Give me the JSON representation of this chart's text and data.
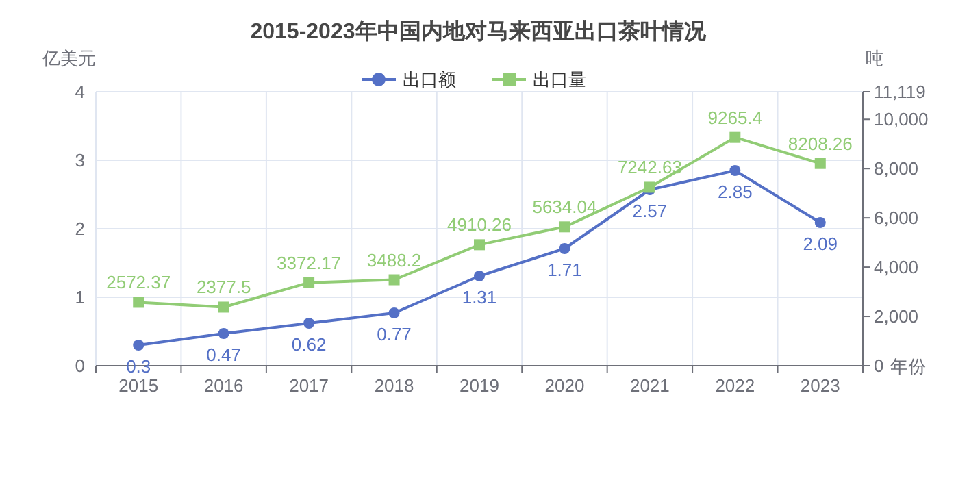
{
  "chart_data": {
    "type": "line",
    "title": "2015-2023年中国内地对马来西亚出口茶叶情况",
    "xlabel": "年份",
    "ylabel": "亿美元",
    "y2label": "吨",
    "categories": [
      "2015",
      "2016",
      "2017",
      "2018",
      "2019",
      "2020",
      "2021",
      "2022",
      "2023"
    ],
    "ylim": [
      0,
      4
    ],
    "yticks": [
      0,
      1,
      2,
      3,
      4
    ],
    "y2lim": [
      0,
      11119
    ],
    "y2ticks": [
      0,
      {
        "value": 2000,
        "label": "2,000"
      },
      {
        "value": 4000,
        "label": "4,000"
      },
      {
        "value": 6000,
        "label": "6,000"
      },
      {
        "value": 8000,
        "label": "8,000"
      },
      {
        "value": 10000,
        "label": "10,000"
      },
      {
        "value": 11119,
        "label": "11,119"
      }
    ],
    "series": [
      {
        "name": "出口额",
        "color": "#5470c6",
        "marker": "circle",
        "values": [
          0.3,
          0.47,
          0.62,
          0.77,
          1.31,
          1.71,
          2.57,
          2.85,
          2.09
        ]
      },
      {
        "name": "出口量",
        "color": "#91cc75",
        "marker": "square",
        "axis": "y2",
        "values": [
          2572.37,
          2377.5,
          3372.17,
          3488.2,
          4910.26,
          5634.04,
          7242.63,
          9265.4,
          8208.26
        ]
      }
    ],
    "legend": "top",
    "grid": true,
    "data_labels": true
  }
}
